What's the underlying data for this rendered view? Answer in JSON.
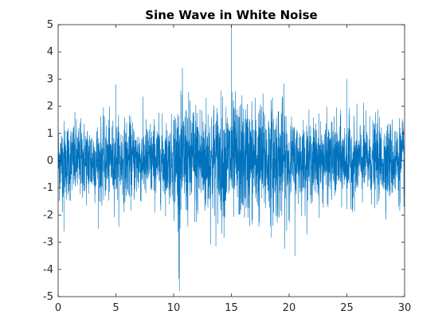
{
  "chart_data": {
    "type": "line",
    "title": "Sine Wave in White Noise",
    "xlabel": "",
    "ylabel": "",
    "xlim": [
      0,
      30
    ],
    "ylim": [
      -5,
      5
    ],
    "xticks": [
      0,
      5,
      10,
      15,
      20,
      25,
      30
    ],
    "yticks": [
      -5,
      -4,
      -3,
      -2,
      -1,
      0,
      1,
      2,
      3,
      4,
      5
    ],
    "grid": false,
    "legend": "none",
    "series": [
      {
        "color": "#0072bd",
        "segments": [
          {
            "x_start": 0,
            "x_end": 10,
            "amplitude_envelope": 1.6,
            "peak_high": 2.8,
            "peak_low": -2.6
          },
          {
            "x_start": 10,
            "x_end": 20,
            "amplitude_envelope": 2.4,
            "peak_high": 5.0,
            "peak_low": -4.8
          },
          {
            "x_start": 20,
            "x_end": 30,
            "amplitude_envelope": 1.6,
            "peak_high": 3.0,
            "peak_low": -3.5
          }
        ],
        "mean": 0
      }
    ]
  }
}
